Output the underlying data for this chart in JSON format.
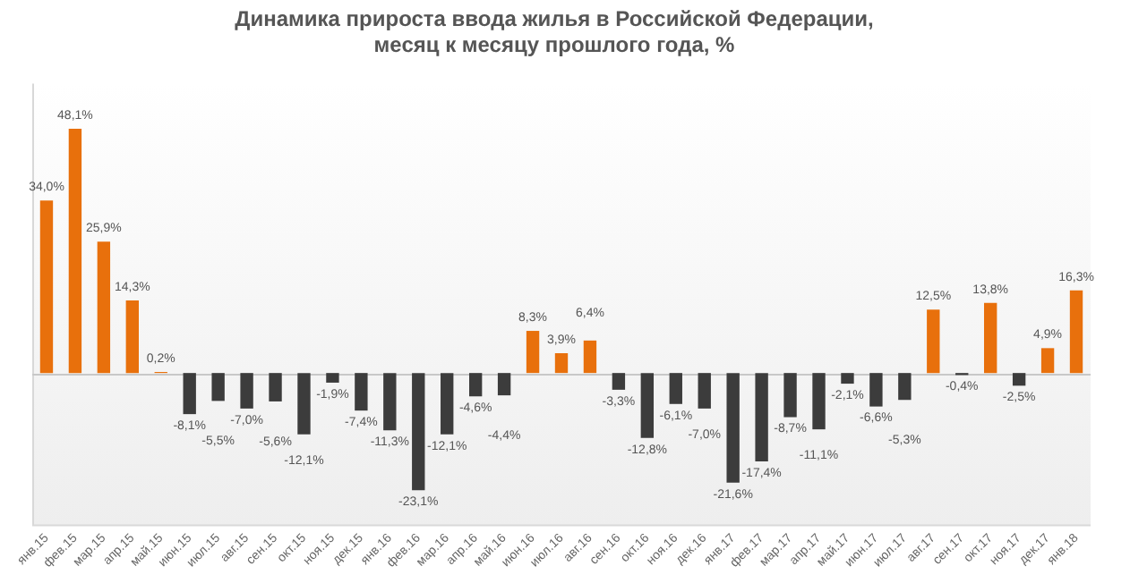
{
  "chart_data": {
    "type": "bar",
    "title": "Динамика прироста ввода жилья в Российской Федерации,\nмесяц к месяцу прошлого года, %",
    "categories": [
      "янв.15",
      "фев.15",
      "мар.15",
      "апр.15",
      "май.15",
      "июн.15",
      "июл.15",
      "авг.15",
      "сен.15",
      "окт.15",
      "ноя.15",
      "дек.15",
      "янв.16",
      "фев.16",
      "мар.16",
      "апр.16",
      "май.16",
      "июн.16",
      "июл.16",
      "авг.16",
      "сен.16",
      "окт.16",
      "ноя.16",
      "дек.16",
      "янв.17",
      "фев.17",
      "мар.17",
      "апр.17",
      "май.17",
      "июн.17",
      "июл.17",
      "авг.17",
      "сен.17",
      "окт.17",
      "ноя.17",
      "дек.17",
      "янв.18"
    ],
    "values": [
      34.0,
      48.1,
      25.9,
      14.3,
      0.2,
      -8.1,
      -5.5,
      -7.0,
      -5.6,
      -12.1,
      -1.9,
      -7.4,
      -11.3,
      -23.1,
      -12.1,
      -4.6,
      -4.4,
      8.3,
      3.9,
      6.4,
      -3.3,
      -12.8,
      -6.1,
      -7.0,
      -21.6,
      -17.4,
      -8.7,
      -11.1,
      -2.1,
      -6.6,
      -5.3,
      12.5,
      -0.4,
      13.8,
      -2.5,
      4.9,
      16.3
    ],
    "value_labels": [
      "34,0%",
      "48,1%",
      "25,9%",
      "14,3%",
      "0,2%",
      "-8,1%",
      "-5,5%",
      "-7,0%",
      "-5,6%",
      "-12,1%",
      "-1,9%",
      "-7,4%",
      "-11,3%",
      "-23,1%",
      "-12,1%",
      "-4,6%",
      "-4,4%",
      "8,3%",
      "3,9%",
      "6,4%",
      "-3,3%",
      "-12,8%",
      "-6,1%",
      "-7,0%",
      "-21,6%",
      "-17,4%",
      "-8,7%",
      "-11,1%",
      "-2,1%",
      "-6,6%",
      "-5,3%",
      "12,5%",
      "-0,4%",
      "13,8%",
      "-2,5%",
      "4,9%",
      "16,3%"
    ],
    "colors": [
      "#e8700c",
      "#e8700c",
      "#e8700c",
      "#e8700c",
      "#e8700c",
      "#3c3c3c",
      "#3c3c3c",
      "#3c3c3c",
      "#3c3c3c",
      "#3c3c3c",
      "#3c3c3c",
      "#3c3c3c",
      "#3c3c3c",
      "#3c3c3c",
      "#3c3c3c",
      "#3c3c3c",
      "#3c3c3c",
      "#e8700c",
      "#e8700c",
      "#e8700c",
      "#3c3c3c",
      "#3c3c3c",
      "#3c3c3c",
      "#3c3c3c",
      "#3c3c3c",
      "#3c3c3c",
      "#3c3c3c",
      "#3c3c3c",
      "#3c3c3c",
      "#3c3c3c",
      "#3c3c3c",
      "#e8700c",
      "#3c3c3c",
      "#e8700c",
      "#3c3c3c",
      "#e8700c",
      "#e8700c"
    ],
    "ylim": [
      -30,
      57
    ],
    "tick_labels": "x",
    "grid": false,
    "legend": false
  }
}
